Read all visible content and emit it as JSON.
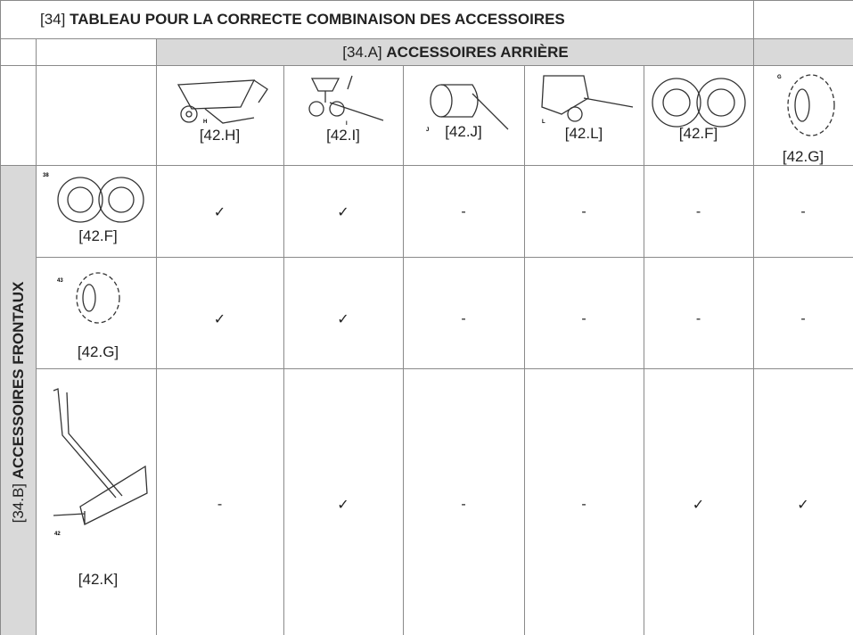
{
  "title": {
    "number": "[34]",
    "text": "TABLEAU POUR LA CORRECTE COMBINAISON DES ACCESSOIRES"
  },
  "rear_header": {
    "number": "[34.A]",
    "text": "ACCESSOIRES ARRIÈRE"
  },
  "front_header": {
    "number": "[34.B]",
    "text": "ACCESSOIRES FRONTAUX"
  },
  "columns": [
    {
      "code": "[42.H]",
      "figure_label": "H"
    },
    {
      "code": "[42.I]",
      "figure_label": "I"
    },
    {
      "code": "[42.J]",
      "figure_label": "J"
    },
    {
      "code": "[42.L]",
      "figure_label": "L"
    },
    {
      "code": "[42.F]"
    },
    {
      "code": "[42.G]",
      "figure_label": "G"
    }
  ],
  "rows": [
    {
      "code": "[42.F]",
      "figure_label": "38",
      "cells": [
        "✓",
        "✓",
        "-",
        "-",
        "-",
        "-"
      ]
    },
    {
      "code": "[42.G]",
      "figure_label": "43",
      "cells": [
        "✓",
        "✓",
        "-",
        "-",
        "-",
        "-"
      ]
    },
    {
      "code": "[42.K]",
      "figure_label": "42",
      "cells": [
        "-",
        "✓",
        "-",
        "-",
        "✓",
        "✓"
      ]
    }
  ]
}
